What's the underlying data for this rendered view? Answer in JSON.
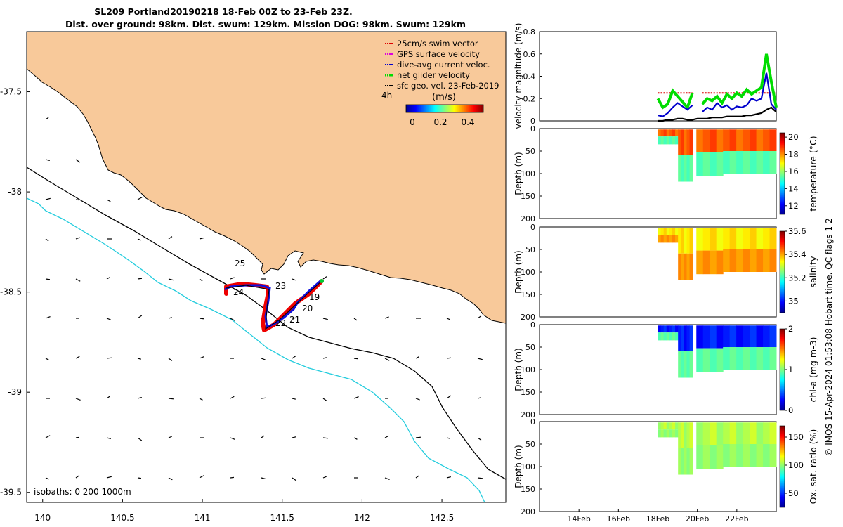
{
  "title": {
    "line1": "SL209 Portland20190218 18-Feb 00Z to 23-Feb 23Z.",
    "line2": "Dist. over ground: 98km. Dist. swum: 129km. Mission DOG: 98km. Swum: 129km"
  },
  "map": {
    "x_ticks": [
      "140",
      "140.5",
      "141",
      "141.5",
      "142",
      "142.5"
    ],
    "y_ticks": [
      "-37.5",
      "-38",
      "-38.5",
      "-39",
      "-39.5"
    ],
    "xlim": [
      139.9,
      142.9
    ],
    "ylim": [
      -39.55,
      -37.2
    ],
    "isobaths_label": "isobaths: 0   200  1000m",
    "legend": [
      {
        "label": "25cm/s swim vector",
        "color": "#dd0000"
      },
      {
        "label": "GPS surface velocity",
        "color": "#dd00dd"
      },
      {
        "label": "dive-avg current veloc.",
        "color": "#0000cc"
      },
      {
        "label": "net glider velocity",
        "color": "#00dd00"
      },
      {
        "label": "sfc geo. vel. 23-Feb-2019",
        "color": "#000000"
      }
    ],
    "colorbar": {
      "title": "(m/s)",
      "corner_label": "4h",
      "ticks": [
        "0",
        "0.2",
        "0.4"
      ]
    },
    "day_labels": [
      "19",
      "20",
      "21",
      "22",
      "23",
      "24",
      "25"
    ],
    "land_color": "#f8c99a",
    "isobath_200_color": "#000000",
    "isobath_1000_color": "#22ccdd"
  },
  "chart_data": [
    {
      "type": "line",
      "title": "",
      "ylabel": "velocity magnitude (m/s)",
      "ylim": [
        0,
        0.8
      ],
      "y_ticks": [
        "0",
        "0.2",
        "0.4",
        "0.6",
        "0.8"
      ],
      "x_days": [
        18,
        18.25,
        18.5,
        18.75,
        19,
        19.25,
        19.5,
        19.75,
        20,
        20.25,
        20.5,
        20.75,
        21,
        21.25,
        21.5,
        21.75,
        22,
        22.25,
        22.5,
        22.75,
        23,
        23.25,
        23.5,
        23.75,
        24
      ],
      "series": [
        {
          "name": "25cm/s swim vector",
          "color": "#dd0000",
          "values": [
            0.25,
            0.25,
            0.25,
            0.25,
            0.25,
            0.25,
            0.25,
            0.25,
            null,
            0.25,
            0.25,
            0.25,
            0.25,
            0.25,
            0.25,
            0.25,
            0.25,
            0.25,
            0.25,
            0.25,
            0.25,
            0.25,
            0.25,
            0.25,
            0.25
          ]
        },
        {
          "name": "net glider velocity",
          "color": "#00dd00",
          "values": [
            0.2,
            0.12,
            0.15,
            0.27,
            0.22,
            0.17,
            0.12,
            0.25,
            null,
            0.15,
            0.2,
            0.18,
            0.22,
            0.16,
            0.24,
            0.2,
            0.25,
            0.22,
            0.28,
            0.24,
            0.27,
            0.3,
            0.6,
            0.35,
            0.12
          ]
        },
        {
          "name": "dive-avg current veloc.",
          "color": "#0000cc",
          "values": [
            0.05,
            0.04,
            0.07,
            0.12,
            0.16,
            0.13,
            0.1,
            0.14,
            null,
            0.08,
            0.12,
            0.1,
            0.16,
            0.12,
            0.14,
            0.1,
            0.13,
            0.12,
            0.14,
            0.2,
            0.18,
            0.2,
            0.43,
            0.15,
            0.1
          ]
        },
        {
          "name": "sfc geo. vel. 23-Feb-2019",
          "color": "#000000",
          "values": [
            0.0,
            0.0,
            0.01,
            0.01,
            0.02,
            0.02,
            0.01,
            0.01,
            0.02,
            0.02,
            0.02,
            0.03,
            0.03,
            0.03,
            0.04,
            0.04,
            0.04,
            0.04,
            0.05,
            0.05,
            0.06,
            0.07,
            0.1,
            0.12,
            0.08
          ]
        }
      ]
    },
    {
      "type": "heatmap",
      "ylabel": "Depth (m)",
      "cbar_label": "temperature (°C)",
      "ylim": [
        200,
        0
      ],
      "y_ticks": [
        "0",
        "50",
        "100",
        "150",
        "200"
      ],
      "cbar_ticks": [
        "12",
        "14",
        "16",
        "18",
        "20"
      ],
      "cbar_range": [
        11,
        20.5
      ],
      "surface_value": 18.5,
      "deep_value": 15.2
    },
    {
      "type": "heatmap",
      "ylabel": "Depth (m)",
      "cbar_label": "salinity",
      "ylim": [
        200,
        0
      ],
      "y_ticks": [
        "0",
        "50",
        "100",
        "150",
        "200"
      ],
      "cbar_ticks": [
        "35",
        "35.2",
        "35.4",
        "35.6"
      ],
      "cbar_range": [
        34.9,
        35.6
      ],
      "surface_value": 35.35,
      "deep_value": 35.4
    },
    {
      "type": "heatmap",
      "ylabel": "Depth (m)",
      "cbar_label": "chl-a (mg m-3)",
      "ylim": [
        200,
        0
      ],
      "y_ticks": [
        "0",
        "50",
        "100",
        "150",
        "200"
      ],
      "cbar_ticks": [
        "0",
        "1",
        "2"
      ],
      "cbar_range": [
        0,
        2
      ],
      "surface_value": 0.3,
      "deep_value": 0.9
    },
    {
      "type": "heatmap",
      "ylabel": "Depth (m)",
      "cbar_label": "Ox. sat. ratio (%)",
      "ylim": [
        200,
        0
      ],
      "y_ticks": [
        "0",
        "50",
        "100",
        "150",
        "200"
      ],
      "cbar_ticks": [
        "50",
        "100",
        "150"
      ],
      "cbar_range": [
        25,
        170
      ],
      "surface_value": 105,
      "deep_value": 98
    }
  ],
  "time_axis": {
    "ticks": [
      "14Feb",
      "16Feb",
      "18Feb",
      "20Feb",
      "22Feb"
    ],
    "tick_days": [
      14,
      16,
      18,
      20,
      22
    ],
    "range": [
      12,
      24
    ]
  },
  "credit": "© IMOS 15-Apr-2024 01:53:08 Hobart time. QC flags 1  2"
}
